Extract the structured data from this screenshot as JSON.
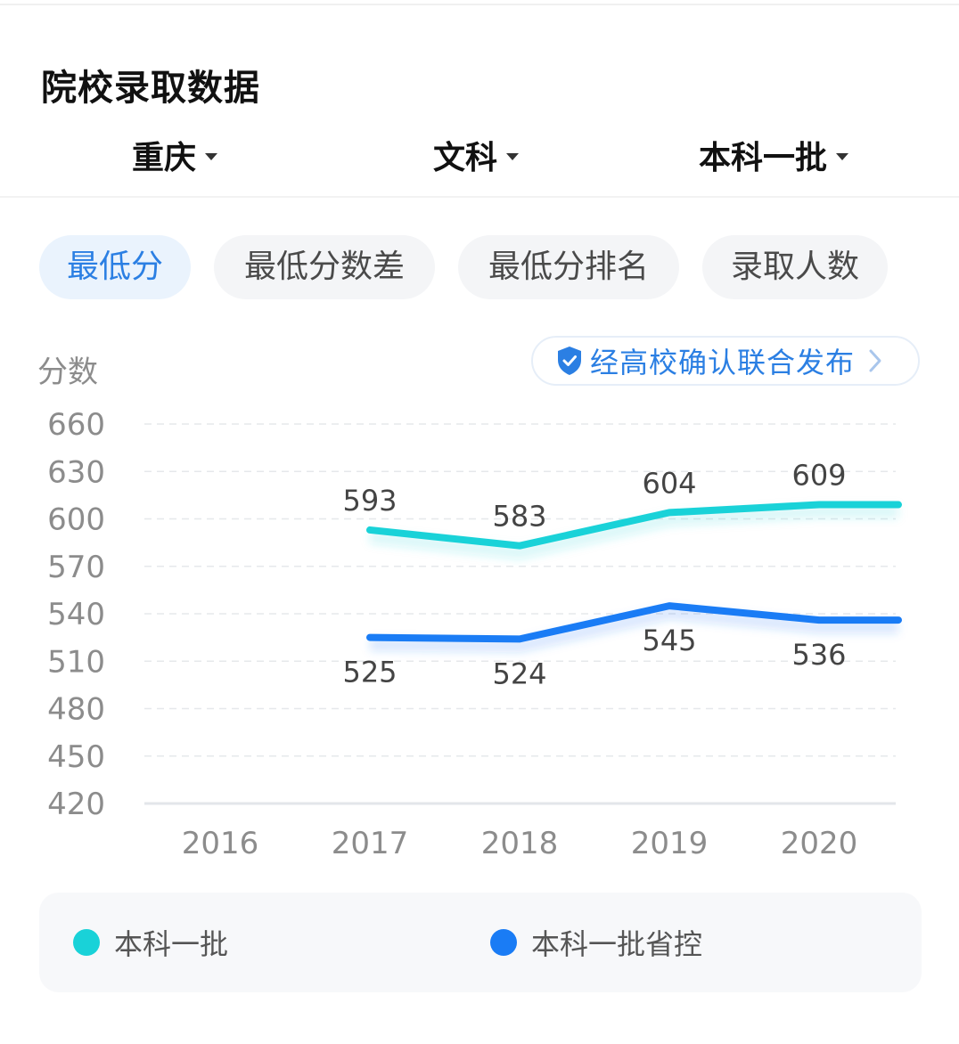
{
  "page": {
    "title": "院校录取数据",
    "filters": [
      {
        "label": "重庆"
      },
      {
        "label": "文科"
      },
      {
        "label": "本科一批"
      }
    ],
    "tabs": [
      {
        "label": "最低分",
        "active": true
      },
      {
        "label": "最低分数差",
        "active": false
      },
      {
        "label": "最低分排名",
        "active": false
      },
      {
        "label": "录取人数",
        "active": false
      }
    ],
    "badge": {
      "text": "经高校确认联合发布",
      "icon": "shield-check-icon",
      "chevron": "chevron-right-icon"
    }
  },
  "colors": {
    "accent": "#2b7fe3",
    "series_batch1": "#19d2d8",
    "series_control": "#1a7cf5"
  },
  "chart_data": {
    "type": "line",
    "ylabel": "分数",
    "ylim": [
      420,
      660
    ],
    "yticks": [
      660,
      630,
      600,
      570,
      540,
      510,
      480,
      450,
      420
    ],
    "categories": [
      "2016",
      "2017",
      "2018",
      "2019",
      "2020"
    ],
    "grid": true,
    "legend_position": "bottom",
    "series": [
      {
        "name": "本科一批",
        "values": [
          null,
          593,
          583,
          604,
          609
        ],
        "color": "#19d2d8",
        "label_position": "above"
      },
      {
        "name": "本科一批省控",
        "values": [
          null,
          525,
          524,
          545,
          536
        ],
        "color": "#1a7cf5",
        "label_position": "below"
      }
    ]
  }
}
